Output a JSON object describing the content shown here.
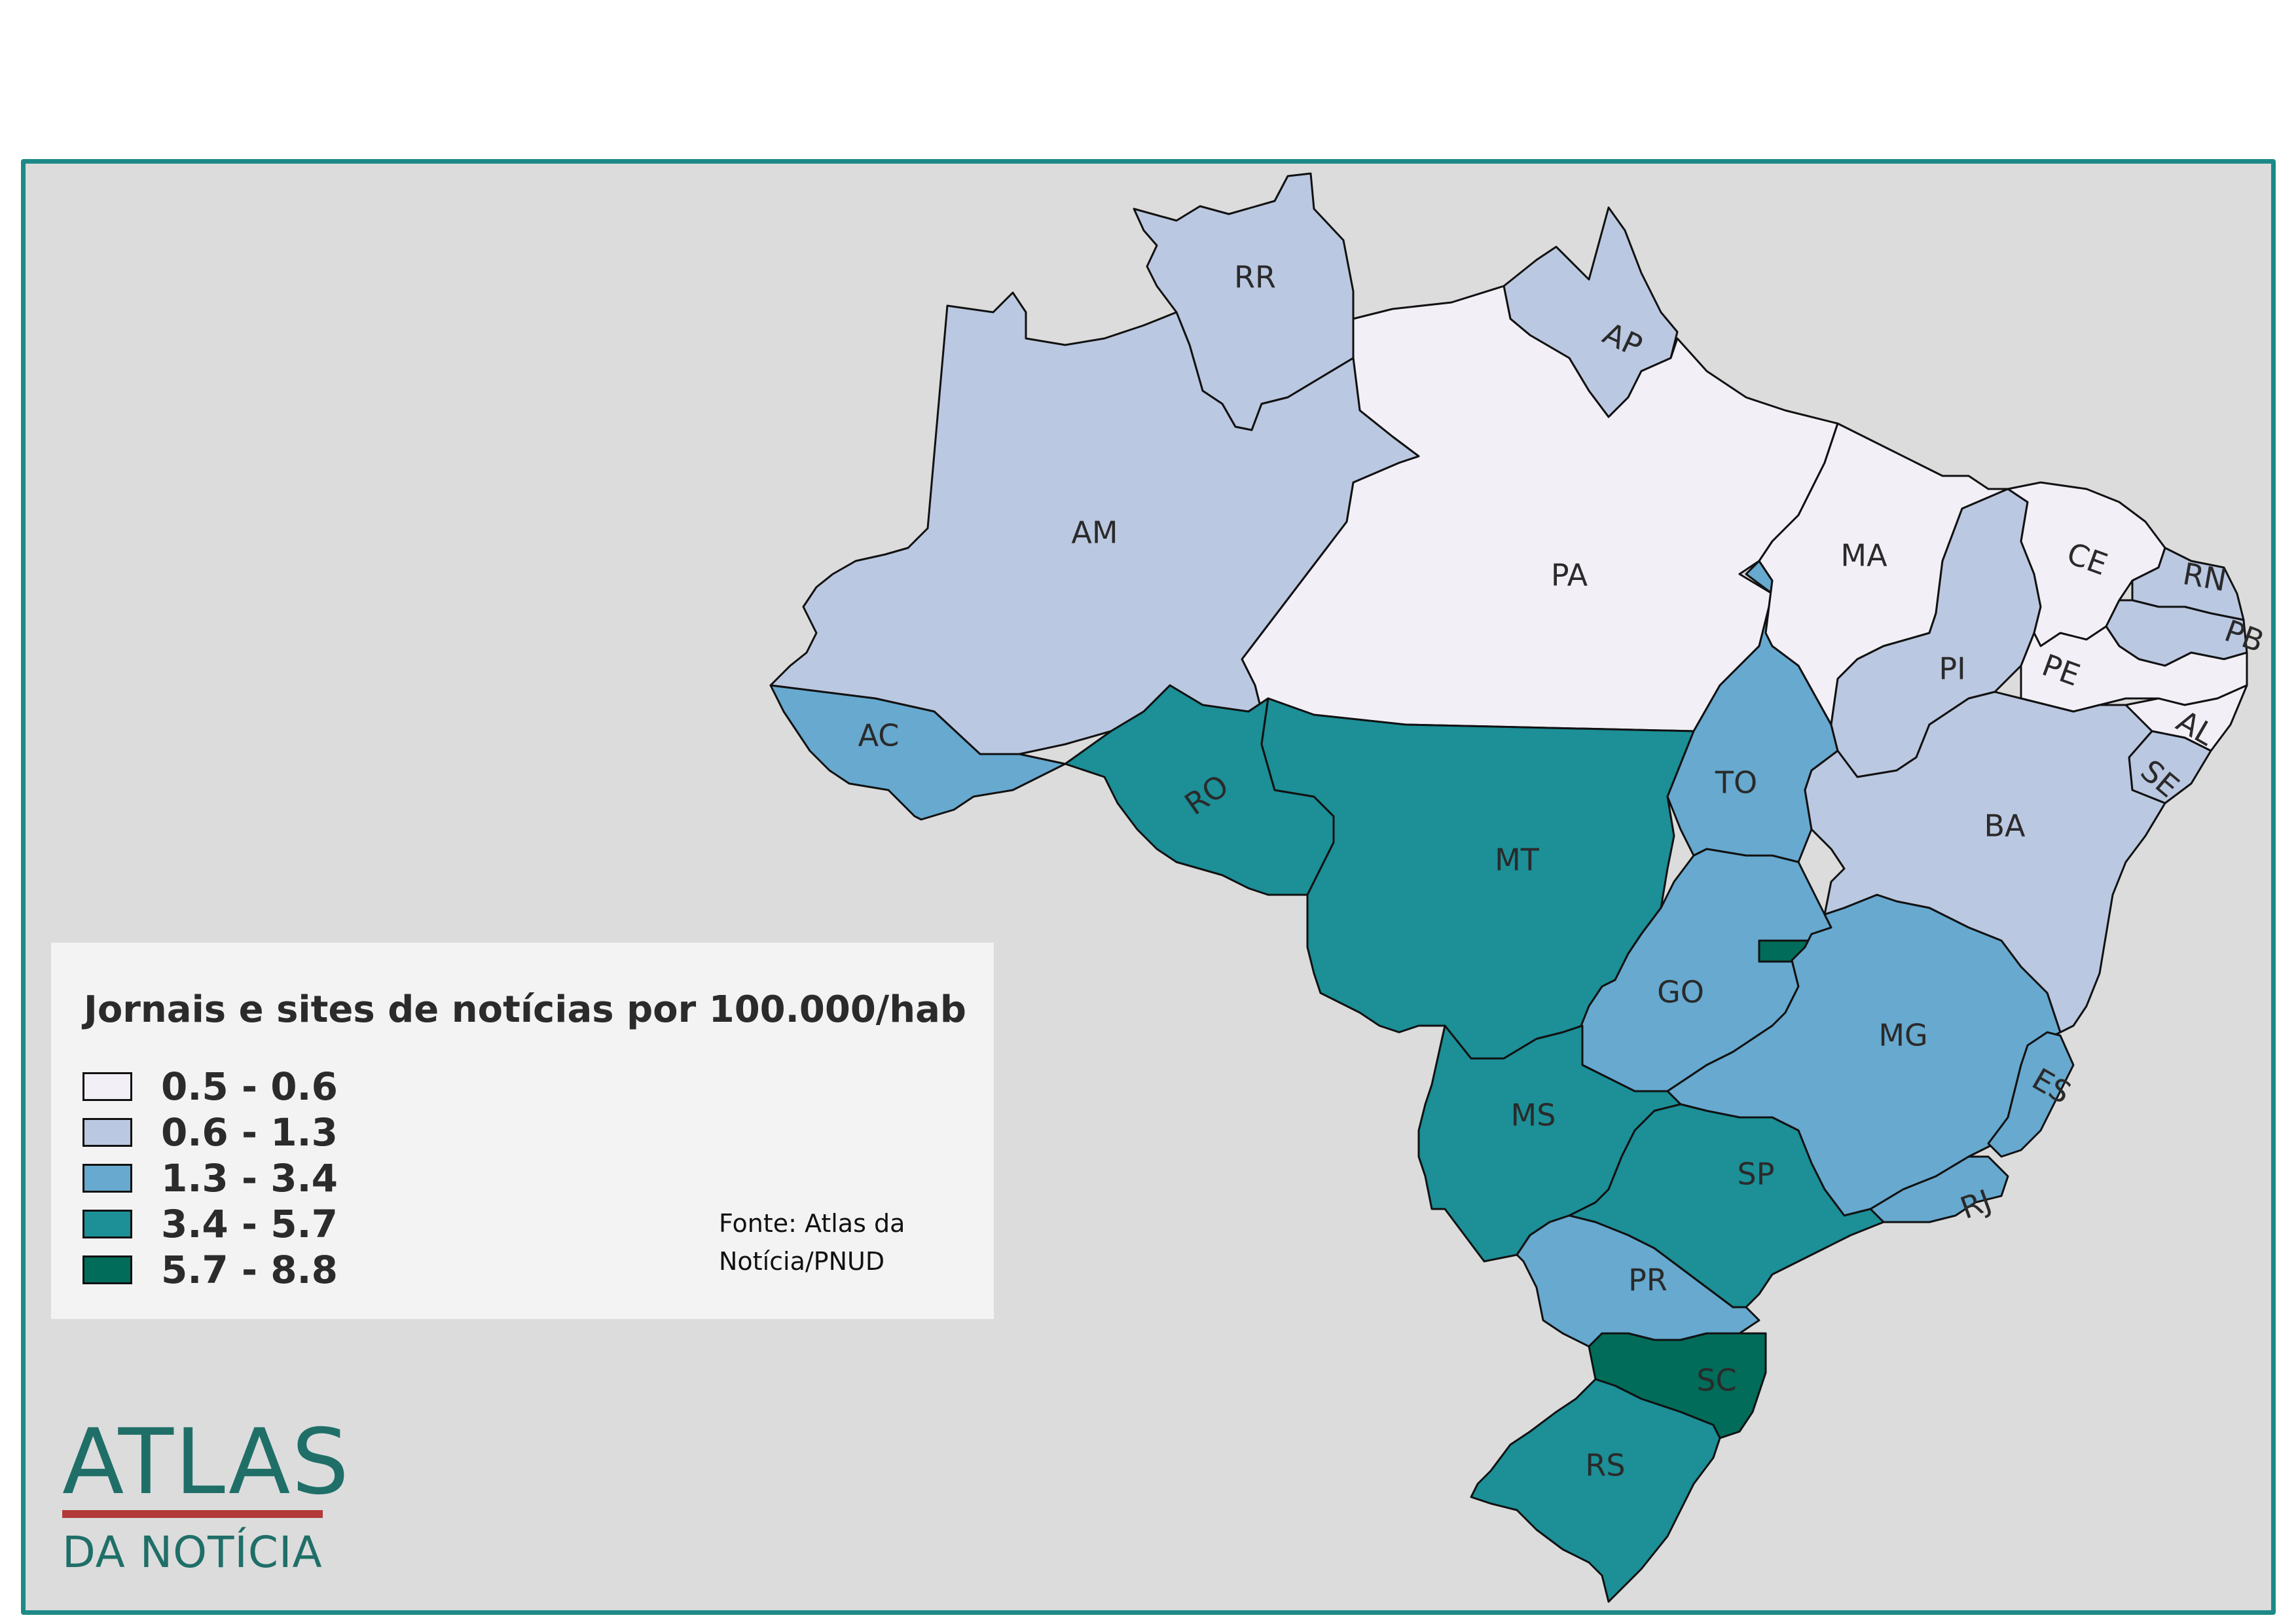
{
  "legend": {
    "title": "Jornais e sites de notícias por 100.000/hab",
    "classes": [
      {
        "label": "0.5 - 0.6",
        "color": "#f3eff7"
      },
      {
        "label": "0.6 - 1.3",
        "color": "#bbc8e1"
      },
      {
        "label": "1.3 - 3.4",
        "color": "#67a9cf"
      },
      {
        "label": "3.4 - 5.7",
        "color": "#1c8f97"
      },
      {
        "label": "5.7 - 8.8",
        "color": "#016c59"
      }
    ]
  },
  "source": "Fonte: Atlas da Notícia/PNUD",
  "logo": {
    "title": "ATLAS",
    "subtitle": "DA NOTÍCIA"
  },
  "states": [
    {
      "code": "RR",
      "class": 1
    },
    {
      "code": "AP",
      "class": 1
    },
    {
      "code": "AM",
      "class": 1
    },
    {
      "code": "PA",
      "class": 0
    },
    {
      "code": "MA",
      "class": 0
    },
    {
      "code": "CE",
      "class": 0
    },
    {
      "code": "RN",
      "class": 1
    },
    {
      "code": "PB",
      "class": 1
    },
    {
      "code": "PE",
      "class": 0
    },
    {
      "code": "AL",
      "class": 0
    },
    {
      "code": "SE",
      "class": 1
    },
    {
      "code": "PI",
      "class": 1
    },
    {
      "code": "BA",
      "class": 1
    },
    {
      "code": "AC",
      "class": 2
    },
    {
      "code": "RO",
      "class": 3
    },
    {
      "code": "MT",
      "class": 3
    },
    {
      "code": "TO",
      "class": 2
    },
    {
      "code": "GO",
      "class": 2
    },
    {
      "code": "DF",
      "class": 4
    },
    {
      "code": "MG",
      "class": 2
    },
    {
      "code": "ES",
      "class": 2
    },
    {
      "code": "RJ",
      "class": 2
    },
    {
      "code": "MS",
      "class": 3
    },
    {
      "code": "SP",
      "class": 3
    },
    {
      "code": "PR",
      "class": 2
    },
    {
      "code": "SC",
      "class": 4
    },
    {
      "code": "RS",
      "class": 3
    }
  ],
  "state_labels": {
    "RR": "RR",
    "AP": "AP",
    "AM": "AM",
    "PA": "PA",
    "MA": "MA",
    "CE": "CE",
    "RN": "RN",
    "PB": "PB",
    "PE": "PE",
    "AL": "AL",
    "SE": "SE",
    "PI": "PI",
    "BA": "BA",
    "AC": "AC",
    "RO": "RO",
    "MT": "MT",
    "TO": "TO",
    "GO": "GO",
    "MG": "MG",
    "ES": "ES",
    "RJ": "RJ",
    "MS": "MS",
    "SP": "SP",
    "PR": "PR",
    "SC": "SC",
    "RS": "RS"
  }
}
